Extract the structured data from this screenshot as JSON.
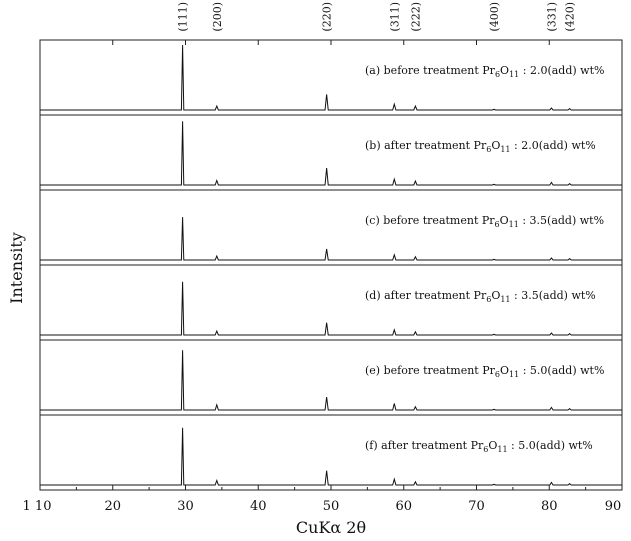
{
  "chart_data": {
    "type": "line",
    "title": "",
    "xlabel": "CuKα 2θ",
    "ylabel": "Intensity",
    "xlim": [
      10,
      90
    ],
    "x_ticks": [
      "1 10",
      "20",
      "30",
      "40",
      "50",
      "60",
      "70",
      "80",
      "90"
    ],
    "stacked_panels": true,
    "grid": false,
    "line_color": "#111111",
    "peak_labels": [
      {
        "label": "(111)",
        "x": 29.6
      },
      {
        "label": "(200)",
        "x": 34.3
      },
      {
        "label": "(220)",
        "x": 49.4
      },
      {
        "label": "(311)",
        "x": 58.7
      },
      {
        "label": "(222)",
        "x": 61.6
      },
      {
        "label": "(400)",
        "x": 72.4
      },
      {
        "label": "(331)",
        "x": 80.3
      },
      {
        "label": "(420)",
        "x": 82.8
      }
    ],
    "series": [
      {
        "name": "(a) before treatment",
        "formula": {
          "base": "Pr",
          "sub1": "6",
          "mid": "O",
          "sub2": "11"
        },
        "suffix": ": 2.0(add) wt%",
        "peaks": [
          {
            "x": 29.6,
            "y": 1.0
          },
          {
            "x": 34.3,
            "y": 0.06
          },
          {
            "x": 49.4,
            "y": 0.24
          },
          {
            "x": 58.7,
            "y": 0.09
          },
          {
            "x": 61.6,
            "y": 0.06
          },
          {
            "x": 72.4,
            "y": 0.01
          },
          {
            "x": 80.3,
            "y": 0.03
          },
          {
            "x": 82.8,
            "y": 0.02
          }
        ]
      },
      {
        "name": "(b) after treatment",
        "formula": {
          "base": "Pr",
          "sub1": "6",
          "mid": "O",
          "sub2": "11"
        },
        "suffix": ": 2.0(add) wt%",
        "peaks": [
          {
            "x": 29.6,
            "y": 0.98
          },
          {
            "x": 34.3,
            "y": 0.07
          },
          {
            "x": 49.4,
            "y": 0.26
          },
          {
            "x": 58.7,
            "y": 0.09
          },
          {
            "x": 61.6,
            "y": 0.06
          },
          {
            "x": 72.4,
            "y": 0.01
          },
          {
            "x": 80.3,
            "y": 0.04
          },
          {
            "x": 82.8,
            "y": 0.02
          }
        ]
      },
      {
        "name": "(c) before treatment",
        "formula": {
          "base": "Pr",
          "sub1": "6",
          "mid": "O",
          "sub2": "11"
        },
        "suffix": ": 3.5(add) wt%",
        "peaks": [
          {
            "x": 29.6,
            "y": 0.66
          },
          {
            "x": 34.3,
            "y": 0.06
          },
          {
            "x": 49.4,
            "y": 0.17
          },
          {
            "x": 58.7,
            "y": 0.08
          },
          {
            "x": 61.6,
            "y": 0.05
          },
          {
            "x": 72.4,
            "y": 0.01
          },
          {
            "x": 80.3,
            "y": 0.03
          },
          {
            "x": 82.8,
            "y": 0.02
          }
        ]
      },
      {
        "name": "(d) after treatment",
        "formula": {
          "base": "Pr",
          "sub1": "6",
          "mid": "O",
          "sub2": "11"
        },
        "suffix": ": 3.5(add) wt%",
        "peaks": [
          {
            "x": 29.6,
            "y": 0.82
          },
          {
            "x": 34.3,
            "y": 0.06
          },
          {
            "x": 49.4,
            "y": 0.19
          },
          {
            "x": 58.7,
            "y": 0.08
          },
          {
            "x": 61.6,
            "y": 0.05
          },
          {
            "x": 72.4,
            "y": 0.01
          },
          {
            "x": 80.3,
            "y": 0.03
          },
          {
            "x": 82.8,
            "y": 0.02
          }
        ]
      },
      {
        "name": "(e) before treatment",
        "formula": {
          "base": "Pr",
          "sub1": "6",
          "mid": "O",
          "sub2": "11"
        },
        "suffix": ": 5.0(add) wt%",
        "peaks": [
          {
            "x": 29.6,
            "y": 0.92
          },
          {
            "x": 34.3,
            "y": 0.08
          },
          {
            "x": 49.4,
            "y": 0.2
          },
          {
            "x": 58.7,
            "y": 0.1
          },
          {
            "x": 61.6,
            "y": 0.05
          },
          {
            "x": 72.4,
            "y": 0.01
          },
          {
            "x": 80.3,
            "y": 0.04
          },
          {
            "x": 82.8,
            "y": 0.02
          }
        ]
      },
      {
        "name": "(f) after treatment",
        "formula": {
          "base": "Pr",
          "sub1": "6",
          "mid": "O",
          "sub2": "11"
        },
        "suffix": ": 5.0(add) wt%",
        "peaks": [
          {
            "x": 29.6,
            "y": 0.88
          },
          {
            "x": 34.3,
            "y": 0.07
          },
          {
            "x": 49.4,
            "y": 0.22
          },
          {
            "x": 58.7,
            "y": 0.09
          },
          {
            "x": 61.6,
            "y": 0.05
          },
          {
            "x": 72.4,
            "y": 0.01
          },
          {
            "x": 80.3,
            "y": 0.04
          },
          {
            "x": 82.8,
            "y": 0.02
          }
        ]
      }
    ]
  }
}
